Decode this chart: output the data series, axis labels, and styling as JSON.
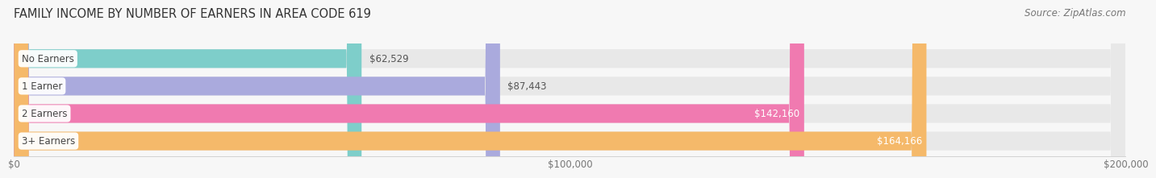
{
  "title": "FAMILY INCOME BY NUMBER OF EARNERS IN AREA CODE 619",
  "source": "Source: ZipAtlas.com",
  "categories": [
    "No Earners",
    "1 Earner",
    "2 Earners",
    "3+ Earners"
  ],
  "values": [
    62529,
    87443,
    142160,
    164166
  ],
  "value_labels": [
    "$62,529",
    "$87,443",
    "$142,160",
    "$164,166"
  ],
  "bar_colors": [
    "#7ececa",
    "#aaaadd",
    "#f07ab0",
    "#f5b96a"
  ],
  "bar_bg_color": "#e8e8e8",
  "xlim": [
    0,
    200000
  ],
  "xticks": [
    0,
    100000,
    200000
  ],
  "xtick_labels": [
    "$0",
    "$100,000",
    "$200,000"
  ],
  "title_fontsize": 10.5,
  "source_fontsize": 8.5,
  "label_fontsize": 8.5,
  "value_fontsize": 8.5,
  "tick_fontsize": 8.5,
  "background_color": "#f7f7f7",
  "bar_height": 0.68,
  "bar_gap": 0.15,
  "value_inside_threshold": 0.6
}
